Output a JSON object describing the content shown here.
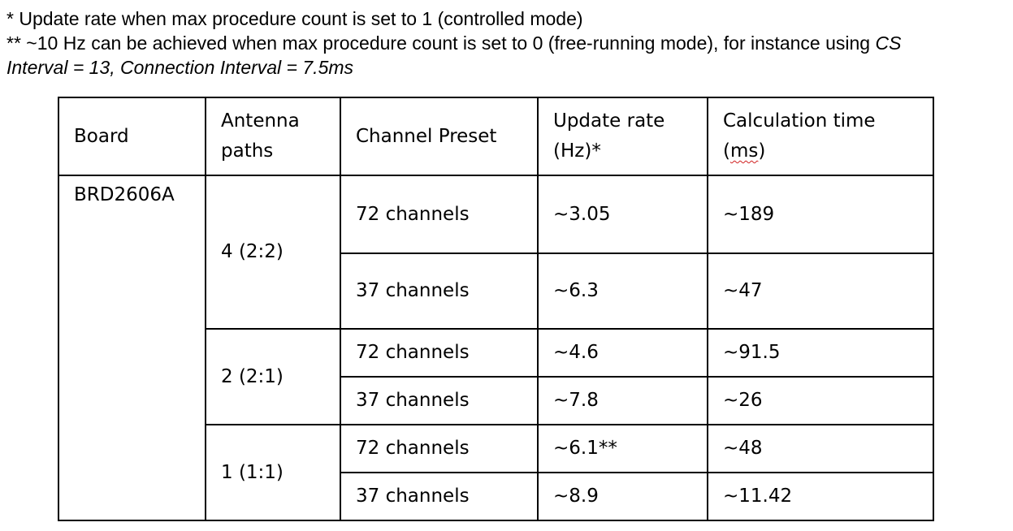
{
  "notes": {
    "note1": "* Update rate when max procedure count is set to 1 (controlled mode)",
    "note2_prefix": "** ~10 Hz can be achieved when max procedure count is set to 0 (free-running mode), for instance using ",
    "note2_italic_1": "CS",
    "note2_italic_2": "Interval = 13, Connection Interval = 7.5ms"
  },
  "table": {
    "headers": {
      "board": "Board",
      "antenna_1": "Antenna",
      "antenna_2": "paths",
      "channel_preset": "Channel Preset",
      "update_rate_1": "Update rate",
      "update_rate_2": "(Hz)*",
      "calc_time_1": "Calculation time",
      "calc_time_open": "(",
      "calc_time_unit": "ms",
      "calc_time_close": ")"
    },
    "board": "BRD2606A",
    "groups": [
      {
        "antenna_paths": "4 (2:2)",
        "rows": [
          {
            "channel_preset": "72 channels",
            "update_rate": "~3.05",
            "calculation_time": "~189"
          },
          {
            "channel_preset": "37 channels",
            "update_rate": "~6.3",
            "calculation_time": "~47"
          }
        ]
      },
      {
        "antenna_paths": "2 (2:1)",
        "rows": [
          {
            "channel_preset": "72 channels",
            "update_rate": "~4.6",
            "calculation_time": "~91.5"
          },
          {
            "channel_preset": "37 channels",
            "update_rate": "~7.8",
            "calculation_time": "~26"
          }
        ]
      },
      {
        "antenna_paths": "1 (1:1)",
        "rows": [
          {
            "channel_preset": "72 channels",
            "update_rate": "~6.1**",
            "calculation_time": "~48"
          },
          {
            "channel_preset": "37 channels",
            "update_rate": "~8.9",
            "calculation_time": "~11.42"
          }
        ]
      }
    ]
  }
}
